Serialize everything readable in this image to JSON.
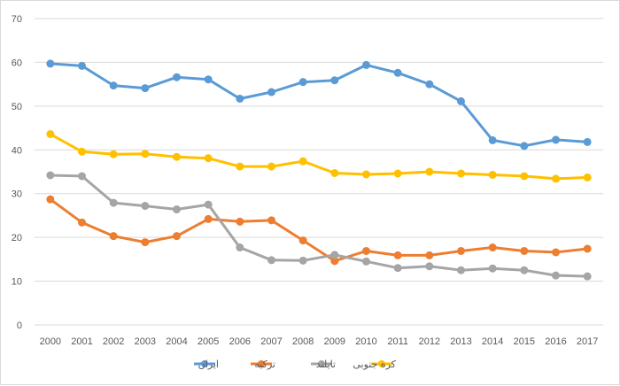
{
  "chart_data": {
    "type": "line",
    "title": "",
    "xlabel": "",
    "ylabel": "",
    "ylim": [
      0,
      70
    ],
    "yticks": [
      0,
      10,
      20,
      30,
      40,
      50,
      60,
      70
    ],
    "grid": true,
    "legend_position": "bottom",
    "categories": [
      "2000",
      "2001",
      "2002",
      "2003",
      "2004",
      "2005",
      "2006",
      "2007",
      "2008",
      "2009",
      "2010",
      "2011",
      "2012",
      "2013",
      "2014",
      "2015",
      "2016",
      "2017"
    ],
    "series": [
      {
        "name": "ایران",
        "color": "#5B9BD5",
        "values": [
          59.7,
          59.2,
          54.7,
          54.1,
          56.6,
          56.1,
          51.7,
          53.2,
          55.5,
          55.9,
          59.4,
          57.6,
          55.0,
          51.1,
          42.2,
          40.9,
          42.3,
          41.8
        ]
      },
      {
        "name": "ترکیه",
        "color": "#ED7D31",
        "values": [
          28.7,
          23.4,
          20.3,
          18.9,
          20.3,
          24.2,
          23.6,
          23.9,
          19.3,
          14.6,
          16.9,
          15.9,
          15.9,
          16.9,
          17.7,
          16.9,
          16.6,
          17.4
        ]
      },
      {
        "name": "تایلند",
        "color": "#A5A5A5",
        "values": [
          34.2,
          34.0,
          27.9,
          27.2,
          26.4,
          27.5,
          17.7,
          14.8,
          14.7,
          16.0,
          14.5,
          13.0,
          13.4,
          12.5,
          12.9,
          12.5,
          11.3,
          11.1
        ]
      },
      {
        "name": "کره جنوبی",
        "color": "#FFC000",
        "values": [
          43.6,
          39.6,
          39.0,
          39.1,
          38.4,
          38.1,
          36.2,
          36.2,
          37.4,
          34.7,
          34.4,
          34.6,
          35.0,
          34.6,
          34.3,
          34.0,
          33.4,
          33.7
        ]
      }
    ]
  }
}
